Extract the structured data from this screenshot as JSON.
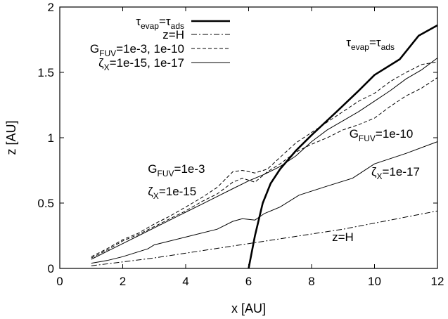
{
  "chart_data": {
    "type": "line",
    "xlabel": "x [AU]",
    "ylabel": "z [AU]",
    "xlim": [
      0,
      12
    ],
    "ylim": [
      0,
      2
    ],
    "xticks": [
      0,
      2,
      4,
      6,
      8,
      10,
      12
    ],
    "yticks": [
      0,
      0.5,
      1,
      1.5,
      2
    ],
    "xtick_labels": [
      "0",
      "2",
      "4",
      "6",
      "8",
      "10",
      "12"
    ],
    "ytick_labels": [
      "0",
      "0.5",
      "1",
      "1.5",
      "2"
    ],
    "grid": false,
    "legend_position": "top-left",
    "legend": [
      {
        "sym": "τ",
        "sub": "evap",
        "mid": "=",
        "sym2": "τ",
        "sub2": "ads",
        "style": "thick"
      },
      {
        "text": "z=H",
        "style": "dashdot"
      },
      {
        "sym": "G",
        "sub": "FUV",
        "tail": "=1e-3, 1e-10",
        "style": "dashed"
      },
      {
        "sym": "ζ",
        "sub": "X",
        "tail": "=1e-15, 1e-17",
        "style": "solid"
      }
    ],
    "series": [
      {
        "style": "thick",
        "x": [
          6.0,
          6.2,
          6.45,
          6.7,
          7.0,
          7.5,
          8.0,
          8.8,
          9.5,
          10.0,
          10.8,
          11.4,
          12.0
        ],
        "y": [
          0.0,
          0.25,
          0.5,
          0.65,
          0.76,
          0.9,
          1.02,
          1.2,
          1.36,
          1.48,
          1.6,
          1.78,
          1.86
        ]
      },
      {
        "style": "dashdot",
        "x": [
          1.0,
          3.0,
          6.0,
          9.0,
          12.0
        ],
        "y": [
          0.02,
          0.08,
          0.19,
          0.3,
          0.44
        ]
      },
      {
        "style": "dashed",
        "x": [
          1.0,
          1.5,
          2.0,
          2.5,
          3.0,
          3.5,
          4.0,
          4.5,
          5.0,
          5.5,
          5.8,
          6.2,
          6.6,
          7.0,
          7.5,
          8.0,
          8.5,
          9.0,
          9.5,
          10.0,
          10.5,
          11.0,
          11.5,
          12.0
        ],
        "y": [
          0.09,
          0.15,
          0.22,
          0.27,
          0.34,
          0.4,
          0.47,
          0.54,
          0.62,
          0.74,
          0.75,
          0.73,
          0.76,
          0.85,
          0.96,
          1.04,
          1.12,
          1.2,
          1.28,
          1.34,
          1.43,
          1.5,
          1.56,
          1.58
        ]
      },
      {
        "style": "dashed",
        "x": [
          1.0,
          1.5,
          2.0,
          2.5,
          3.0,
          3.5,
          4.0,
          4.5,
          5.0,
          5.5,
          5.8,
          6.2,
          6.6,
          7.0,
          7.5,
          8.0,
          8.5,
          9.0,
          9.5,
          10.0,
          10.5,
          11.0,
          11.5,
          12.0
        ],
        "y": [
          0.08,
          0.14,
          0.21,
          0.26,
          0.32,
          0.38,
          0.44,
          0.51,
          0.57,
          0.66,
          0.69,
          0.66,
          0.74,
          0.8,
          0.89,
          0.95,
          1.0,
          1.06,
          1.1,
          1.15,
          1.24,
          1.32,
          1.38,
          1.46
        ]
      },
      {
        "style": "solid",
        "x": [
          1.0,
          1.5,
          2.0,
          2.5,
          3.0,
          3.5,
          4.0,
          4.5,
          5.0,
          5.5,
          6.0,
          6.5,
          7.0,
          7.5,
          8.0,
          8.5,
          9.0,
          9.5,
          10.0,
          10.5,
          11.0,
          11.5,
          12.0
        ],
        "y": [
          0.07,
          0.13,
          0.19,
          0.25,
          0.31,
          0.37,
          0.43,
          0.49,
          0.55,
          0.61,
          0.67,
          0.72,
          0.78,
          0.86,
          0.97,
          1.06,
          1.13,
          1.2,
          1.28,
          1.36,
          1.45,
          1.52,
          1.61
        ]
      },
      {
        "style": "solid",
        "x": [
          1.0,
          1.5,
          2.0,
          2.8,
          3.0,
          4.0,
          5.0,
          5.5,
          5.8,
          6.2,
          6.5,
          7.0,
          7.6,
          8.5,
          9.3,
          10.0,
          11.0,
          12.0
        ],
        "y": [
          0.04,
          0.06,
          0.09,
          0.15,
          0.18,
          0.24,
          0.3,
          0.36,
          0.38,
          0.37,
          0.42,
          0.47,
          0.56,
          0.63,
          0.69,
          0.8,
          0.88,
          0.97
        ]
      }
    ],
    "annotations": [
      {
        "sym": "τ",
        "sub": "evap",
        "mid": "=",
        "sym2": "τ",
        "sub2": "ads",
        "x": 9.1,
        "y": 1.7
      },
      {
        "sym": "G",
        "sub": "FUV",
        "tail": "=1e-10",
        "x": 9.2,
        "y": 1.0
      },
      {
        "sym": "G",
        "sub": "FUV",
        "tail": "=1e-3",
        "x": 2.8,
        "y": 0.73
      },
      {
        "sym": "ζ",
        "sub": "X",
        "tail": "=1e-15",
        "x": 2.8,
        "y": 0.56
      },
      {
        "sym": "ζ",
        "sub": "X",
        "tail": "=1e-17",
        "x": 9.9,
        "y": 0.71
      },
      {
        "text": "z=H",
        "x": 8.65,
        "y": 0.21
      }
    ]
  }
}
